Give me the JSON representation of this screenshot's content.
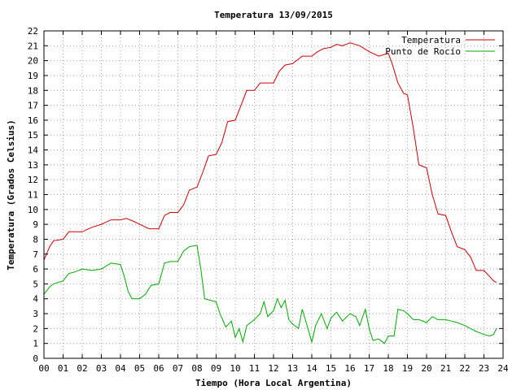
{
  "chart_data": {
    "type": "line",
    "title": "Temperatura 13/09/2015",
    "xlabel": "Tiempo (Hora Local Argentina)",
    "ylabel": "Temperatura (Grados Celsius)",
    "xlim": [
      0,
      24
    ],
    "ylim": [
      0,
      22
    ],
    "x_ticks": [
      "00",
      "01",
      "02",
      "03",
      "04",
      "05",
      "06",
      "07",
      "08",
      "09",
      "10",
      "11",
      "12",
      "13",
      "14",
      "15",
      "16",
      "17",
      "18",
      "19",
      "20",
      "21",
      "22",
      "23",
      "24"
    ],
    "y_ticks": [
      "0",
      "1",
      "2",
      "3",
      "4",
      "5",
      "6",
      "7",
      "8",
      "9",
      "10",
      "11",
      "12",
      "13",
      "14",
      "15",
      "16",
      "17",
      "18",
      "19",
      "20",
      "21",
      "22"
    ],
    "grid": true,
    "legend_position": "top-right",
    "series": [
      {
        "name": "Temperatura",
        "color": "#cc0000",
        "points": [
          [
            0.0,
            6.6
          ],
          [
            0.3,
            7.5
          ],
          [
            0.5,
            7.9
          ],
          [
            1.0,
            8.0
          ],
          [
            1.3,
            8.5
          ],
          [
            2.0,
            8.5
          ],
          [
            2.5,
            8.8
          ],
          [
            3.0,
            9.0
          ],
          [
            3.5,
            9.3
          ],
          [
            4.0,
            9.3
          ],
          [
            4.3,
            9.4
          ],
          [
            4.7,
            9.2
          ],
          [
            5.0,
            9.0
          ],
          [
            5.5,
            8.7
          ],
          [
            6.0,
            8.7
          ],
          [
            6.3,
            9.6
          ],
          [
            6.6,
            9.8
          ],
          [
            7.0,
            9.8
          ],
          [
            7.3,
            10.3
          ],
          [
            7.6,
            11.3
          ],
          [
            8.0,
            11.5
          ],
          [
            8.3,
            12.5
          ],
          [
            8.6,
            13.6
          ],
          [
            9.0,
            13.7
          ],
          [
            9.3,
            14.5
          ],
          [
            9.6,
            15.9
          ],
          [
            10.0,
            16.0
          ],
          [
            10.3,
            17.0
          ],
          [
            10.6,
            18.0
          ],
          [
            11.0,
            18.0
          ],
          [
            11.3,
            18.5
          ],
          [
            11.6,
            18.5
          ],
          [
            12.0,
            18.5
          ],
          [
            12.3,
            19.3
          ],
          [
            12.6,
            19.7
          ],
          [
            13.0,
            19.8
          ],
          [
            13.5,
            20.3
          ],
          [
            14.0,
            20.3
          ],
          [
            14.3,
            20.6
          ],
          [
            14.6,
            20.8
          ],
          [
            15.0,
            20.9
          ],
          [
            15.3,
            21.1
          ],
          [
            15.6,
            21.0
          ],
          [
            16.0,
            21.2
          ],
          [
            16.5,
            21.0
          ],
          [
            17.0,
            20.6
          ],
          [
            17.5,
            20.3
          ],
          [
            18.0,
            20.5
          ],
          [
            18.2,
            19.8
          ],
          [
            18.5,
            18.5
          ],
          [
            18.8,
            17.8
          ],
          [
            19.0,
            17.7
          ],
          [
            19.3,
            15.5
          ],
          [
            19.6,
            13.0
          ],
          [
            20.0,
            12.8
          ],
          [
            20.3,
            11.0
          ],
          [
            20.6,
            9.7
          ],
          [
            21.0,
            9.6
          ],
          [
            21.3,
            8.5
          ],
          [
            21.6,
            7.5
          ],
          [
            22.0,
            7.3
          ],
          [
            22.3,
            6.8
          ],
          [
            22.6,
            5.9
          ],
          [
            23.0,
            5.9
          ],
          [
            23.3,
            5.5
          ],
          [
            23.5,
            5.2
          ],
          [
            23.65,
            5.1
          ]
        ]
      },
      {
        "name": "Punto de Rocío",
        "color": "#00aa00",
        "points": [
          [
            0.0,
            4.3
          ],
          [
            0.3,
            4.8
          ],
          [
            0.5,
            5.0
          ],
          [
            1.0,
            5.2
          ],
          [
            1.3,
            5.7
          ],
          [
            1.6,
            5.8
          ],
          [
            2.0,
            6.0
          ],
          [
            2.5,
            5.9
          ],
          [
            3.0,
            6.0
          ],
          [
            3.5,
            6.4
          ],
          [
            4.0,
            6.3
          ],
          [
            4.2,
            5.5
          ],
          [
            4.4,
            4.5
          ],
          [
            4.6,
            4.0
          ],
          [
            5.0,
            4.0
          ],
          [
            5.3,
            4.3
          ],
          [
            5.6,
            4.9
          ],
          [
            6.0,
            5.0
          ],
          [
            6.3,
            6.4
          ],
          [
            6.6,
            6.5
          ],
          [
            7.0,
            6.5
          ],
          [
            7.3,
            7.2
          ],
          [
            7.6,
            7.5
          ],
          [
            8.0,
            7.6
          ],
          [
            8.2,
            6.0
          ],
          [
            8.4,
            4.0
          ],
          [
            8.7,
            3.9
          ],
          [
            9.0,
            3.8
          ],
          [
            9.2,
            3.0
          ],
          [
            9.5,
            2.1
          ],
          [
            9.8,
            2.5
          ],
          [
            10.0,
            1.4
          ],
          [
            10.2,
            2.0
          ],
          [
            10.4,
            1.1
          ],
          [
            10.6,
            2.2
          ],
          [
            11.0,
            2.6
          ],
          [
            11.3,
            3.0
          ],
          [
            11.5,
            3.8
          ],
          [
            11.7,
            2.8
          ],
          [
            12.0,
            3.2
          ],
          [
            12.2,
            4.0
          ],
          [
            12.4,
            3.4
          ],
          [
            12.6,
            3.9
          ],
          [
            12.8,
            2.6
          ],
          [
            13.0,
            2.3
          ],
          [
            13.3,
            2.0
          ],
          [
            13.5,
            3.3
          ],
          [
            13.8,
            2.0
          ],
          [
            14.0,
            1.1
          ],
          [
            14.2,
            2.2
          ],
          [
            14.5,
            3.0
          ],
          [
            14.8,
            2.0
          ],
          [
            15.0,
            2.7
          ],
          [
            15.3,
            3.1
          ],
          [
            15.6,
            2.5
          ],
          [
            16.0,
            3.0
          ],
          [
            16.3,
            2.8
          ],
          [
            16.5,
            2.2
          ],
          [
            16.8,
            3.3
          ],
          [
            17.0,
            2.0
          ],
          [
            17.2,
            1.2
          ],
          [
            17.5,
            1.3
          ],
          [
            17.8,
            1.0
          ],
          [
            18.0,
            1.5
          ],
          [
            18.3,
            1.5
          ],
          [
            18.5,
            3.3
          ],
          [
            18.8,
            3.2
          ],
          [
            19.0,
            3.0
          ],
          [
            19.3,
            2.6
          ],
          [
            19.6,
            2.6
          ],
          [
            20.0,
            2.4
          ],
          [
            20.3,
            2.8
          ],
          [
            20.6,
            2.6
          ],
          [
            21.0,
            2.6
          ],
          [
            21.3,
            2.5
          ],
          [
            21.6,
            2.4
          ],
          [
            22.0,
            2.2
          ],
          [
            22.3,
            2.0
          ],
          [
            22.6,
            1.8
          ],
          [
            23.0,
            1.6
          ],
          [
            23.3,
            1.5
          ],
          [
            23.5,
            1.6
          ],
          [
            23.65,
            2.0
          ]
        ]
      }
    ]
  }
}
